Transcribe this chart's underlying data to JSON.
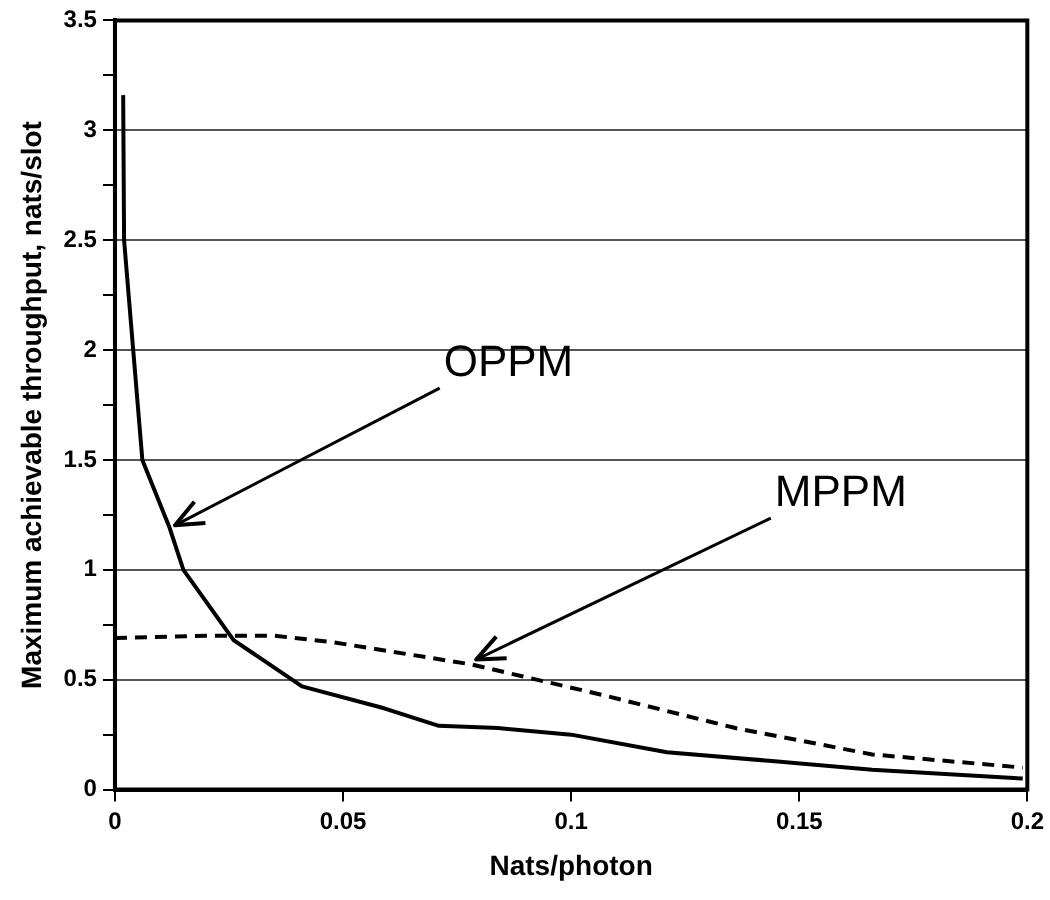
{
  "chart_data": {
    "type": "line",
    "xlabel": "Nats/photon",
    "ylabel": "Maximum achievable throughput, nats/slot",
    "xlim": [
      0,
      0.2
    ],
    "xticks": [
      0,
      0.05,
      0.1,
      0.15,
      0.2
    ],
    "ylim": [
      0,
      3.5
    ],
    "yticks": [
      0,
      {
        "value": 0.25,
        "label": null
      },
      0.5,
      {
        "value": 0.75,
        "label": null
      },
      1,
      {
        "value": 1.25,
        "label": null
      },
      1.5,
      {
        "value": 1.75,
        "label": null
      },
      2,
      {
        "value": 2.25,
        "label": null
      },
      2.5,
      {
        "value": 2.75,
        "label": null
      },
      3,
      {
        "value": 3.25,
        "label": null
      },
      3.5
    ],
    "grid": "y",
    "legend": false,
    "marker": "none",
    "series": [
      {
        "color": "#000000",
        "line_style": "solid",
        "x": [
          0.0018,
          0.002,
          0.004,
          0.006,
          0.012,
          0.015,
          0.026,
          0.041,
          0.059,
          0.071,
          0.084,
          0.1,
          0.121,
          0.144,
          0.166,
          0.199
        ],
        "values": [
          3.16,
          2.5,
          2,
          1.5,
          1.19,
          1,
          0.68,
          0.47,
          0.37,
          0.29,
          0.28,
          0.25,
          0.17,
          0.13,
          0.09,
          0.05
        ]
      },
      {
        "color": "#000000",
        "line_style": "dashed",
        "x": [
          0,
          0.02,
          0.035,
          0.048,
          0.078,
          0.107,
          0.136,
          0.166,
          0.199
        ],
        "values": [
          0.69,
          0.7,
          0.7,
          0.67,
          0.57,
          0.43,
          0.28,
          0.16,
          0.1
        ]
      }
    ],
    "annotations": [
      {
        "text": "OPPM",
        "x": 0.012,
        "y": 1.19
      },
      {
        "text": "MPPM",
        "x": 0.078,
        "y": 0.58
      }
    ]
  }
}
